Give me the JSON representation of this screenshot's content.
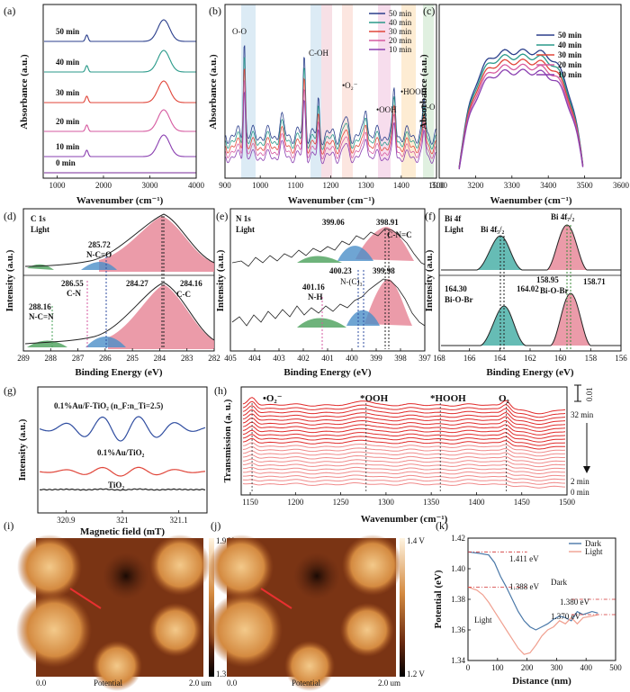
{
  "panels": {
    "a": {
      "label": "(a)"
    },
    "b": {
      "label": "(b)"
    },
    "c": {
      "label": "(c)"
    },
    "d": {
      "label": "(d)"
    },
    "e": {
      "label": "(e)"
    },
    "f": {
      "label": "(f)"
    },
    "g": {
      "label": "(g)"
    },
    "h": {
      "label": "(h)"
    },
    "i": {
      "label": "(i)"
    },
    "j": {
      "label": "(j)"
    },
    "k": {
      "label": "(k)"
    }
  },
  "chart_data": [
    {
      "id": "a",
      "type": "line",
      "xlabel": "Wavenumber (cm⁻¹)",
      "ylabel": "Absorbance (a.u.)",
      "xlim": [
        700,
        4000
      ],
      "xticks": [
        1000,
        2000,
        3000,
        4000
      ],
      "series": [
        {
          "name": "50 min",
          "color": "#2b3f8c",
          "peaks": [
            [
              1640,
              0.3
            ],
            [
              3300,
              1.0
            ]
          ]
        },
        {
          "name": "40 min",
          "color": "#2a9a8a",
          "peaks": [
            [
              1640,
              0.3
            ],
            [
              3300,
              1.0
            ]
          ]
        },
        {
          "name": "30 min",
          "color": "#e0463a",
          "peaks": [
            [
              1640,
              0.3
            ],
            [
              3300,
              1.0
            ]
          ]
        },
        {
          "name": "20 min",
          "color": "#d65aa0",
          "peaks": [
            [
              1640,
              0.3
            ],
            [
              3300,
              1.0
            ]
          ]
        },
        {
          "name": "10 min",
          "color": "#8a3fb0",
          "peaks": [
            [
              1640,
              0.3
            ],
            [
              3300,
              1.0
            ]
          ]
        },
        {
          "name": "0 min",
          "color": "#7a2a9a",
          "peaks": []
        }
      ]
    },
    {
      "id": "b",
      "type": "line",
      "xlabel": "Wavenumber (cm⁻¹)",
      "ylabel": "Absorbance (a.u.)",
      "xlim": [
        900,
        1500
      ],
      "xticks": [
        900,
        1000,
        1100,
        1200,
        1300,
        1400,
        1500
      ],
      "legend": [
        "50 min",
        "40 min",
        "30 min",
        "20 min",
        "10 min"
      ],
      "annotations": [
        "O-O",
        "C-OH",
        "•O₂⁻",
        "•OOH",
        "•HOOH",
        "C-O"
      ],
      "series_colors": [
        "#2b3f8c",
        "#2a9a8a",
        "#e0463a",
        "#d65aa0",
        "#8a3fb0"
      ]
    },
    {
      "id": "c",
      "type": "line",
      "xlabel": "Waenumber (cm⁻¹)",
      "ylabel": "Absorbance (a.u.)",
      "xlim": [
        3100,
        3600
      ],
      "xticks": [
        3100,
        3200,
        3300,
        3400,
        3500,
        3600
      ],
      "legend": [
        "50 min",
        "40 min",
        "30 min",
        "20 min",
        "10 min"
      ],
      "series_colors": [
        "#2b3f8c",
        "#2a9a8a",
        "#e0463a",
        "#d65aa0",
        "#8a3fb0"
      ]
    },
    {
      "id": "d",
      "type": "line",
      "title": "C 1s",
      "subtitle": "Light",
      "xlabel": "Binding Energy (eV)",
      "ylabel": "Intensity (a.u.)",
      "xlim": [
        289,
        282
      ],
      "xticks": [
        289,
        288,
        287,
        286,
        285,
        284,
        283,
        282
      ],
      "annotations": [
        "285.72",
        "N-C=O",
        "284.27",
        "284.16",
        "C-C",
        "286.55",
        "C-N",
        "288.16",
        "N-C=N"
      ]
    },
    {
      "id": "e",
      "type": "line",
      "title": "N 1s",
      "subtitle": "Light",
      "xlabel": "Binding Energy (eV)",
      "ylabel": "Intensity (a.u.)",
      "xlim": [
        405,
        397
      ],
      "xticks": [
        405,
        404,
        403,
        402,
        401,
        400,
        399,
        398,
        397
      ],
      "annotations": [
        "399.06",
        "398.91",
        "C-N=C",
        "400.23",
        "399.98",
        "N-(C)₃",
        "401.16",
        "N-H"
      ]
    },
    {
      "id": "f",
      "type": "line",
      "title": "Bi 4f",
      "subtitle": "Light",
      "xlabel": "Binding Energy (eV)",
      "ylabel": "Intensity (a.u.)",
      "xlim": [
        168,
        156
      ],
      "xticks": [
        168,
        166,
        164,
        162,
        160,
        158,
        156
      ],
      "annotations": [
        "Bi 4f₅/₂",
        "Bi 4f₇/₂",
        "164.30",
        "164.02",
        "Bi-O-Br",
        "158.95",
        "158.71",
        "Bi-O-Br"
      ]
    },
    {
      "id": "g",
      "type": "line",
      "xlabel": "Magnetic field (mT)",
      "ylabel": "Intensity (a.u.)",
      "xlim": [
        320.85,
        321.15
      ],
      "xticks": [
        320.9,
        321.0,
        321.1
      ],
      "series": [
        {
          "name": "0.1%Au/F-TiO₂ (n_F:n_Ti=2.5)",
          "color": "#2f4da0"
        },
        {
          "name": "0.1%Au/TiO₂",
          "color": "#e0463a"
        },
        {
          "name": "TiO₂",
          "color": "#222222"
        }
      ]
    },
    {
      "id": "h",
      "type": "line",
      "xlabel": "Wavenumber (cm⁻¹)",
      "ylabel": "Transmission (a. u.)",
      "xlim": [
        1140,
        1500
      ],
      "xticks": [
        1150,
        1200,
        1250,
        1300,
        1350,
        1400,
        1450,
        1500
      ],
      "annotations": [
        "•O₂⁻",
        "*OOH",
        "*HOOH",
        "O₂"
      ],
      "scale_bar": "0.01",
      "time_labels": [
        "32 min",
        "2 min",
        "0 min"
      ]
    },
    {
      "id": "i",
      "type": "heatmap",
      "caption": "Potential",
      "scale_labels": [
        "0.0",
        "2.0 um",
        "1.9 V",
        "1.3 V"
      ]
    },
    {
      "id": "j",
      "type": "heatmap",
      "caption": "Potential",
      "scale_labels": [
        "0.0",
        "2.0 um",
        "1.4 V",
        "1.2 V"
      ]
    },
    {
      "id": "k",
      "type": "line",
      "xlabel": "Distance (nm)",
      "ylabel": "Potential (eV)",
      "xlim": [
        0,
        500
      ],
      "ylim": [
        1.34,
        1.42
      ],
      "xticks": [
        0,
        100,
        200,
        300,
        400,
        500
      ],
      "yticks": [
        1.34,
        1.36,
        1.38,
        1.4,
        1.42
      ],
      "series": [
        {
          "name": "Dark",
          "color": "#4a78a8",
          "x": [
            0,
            40,
            70,
            90,
            110,
            130,
            150,
            170,
            190,
            210,
            230,
            250,
            270,
            290,
            310,
            330,
            350,
            370,
            390,
            420,
            440
          ],
          "y": [
            1.411,
            1.41,
            1.409,
            1.404,
            1.395,
            1.388,
            1.38,
            1.372,
            1.366,
            1.362,
            1.36,
            1.362,
            1.364,
            1.367,
            1.369,
            1.368,
            1.366,
            1.372,
            1.37,
            1.372,
            1.371
          ]
        },
        {
          "name": "Light",
          "color": "#f0a090",
          "x": [
            0,
            30,
            50,
            70,
            90,
            110,
            130,
            150,
            170,
            190,
            210,
            230,
            250,
            270,
            290,
            310,
            330,
            350,
            370,
            390,
            420,
            440
          ],
          "y": [
            1.388,
            1.386,
            1.383,
            1.378,
            1.372,
            1.366,
            1.36,
            1.354,
            1.348,
            1.344,
            1.345,
            1.35,
            1.356,
            1.36,
            1.362,
            1.366,
            1.364,
            1.368,
            1.364,
            1.368,
            1.369,
            1.37
          ]
        }
      ],
      "annotations": [
        "1.411 eV",
        "1.388 eV",
        "Dark",
        "1.380 eV",
        "1.370 eV",
        "Light"
      ]
    }
  ]
}
